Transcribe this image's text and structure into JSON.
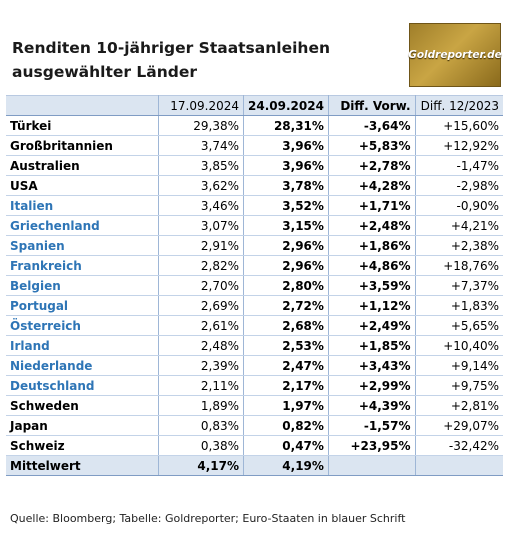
{
  "title_line1": "Renditen 10-jähriger Staatsanleihen",
  "title_line2": "ausgewählter Länder",
  "logo_text": "Goldreporter.de",
  "headers": [
    "",
    "17.09.2024",
    "24.09.2024",
    "Diff. Vorw.",
    "Diff. 12/2023"
  ],
  "rows": [
    {
      "country": "Türkei",
      "euro": false,
      "d1": "29,38%",
      "d2": "28,31%",
      "dw": "-3,64%",
      "dy": "+15,60%"
    },
    {
      "country": "Großbritannien",
      "euro": false,
      "d1": "3,74%",
      "d2": "3,96%",
      "dw": "+5,83%",
      "dy": "+12,92%"
    },
    {
      "country": "Australien",
      "euro": false,
      "d1": "3,85%",
      "d2": "3,96%",
      "dw": "+2,78%",
      "dy": "-1,47%"
    },
    {
      "country": "USA",
      "euro": false,
      "d1": "3,62%",
      "d2": "3,78%",
      "dw": "+4,28%",
      "dy": "-2,98%"
    },
    {
      "country": "Italien",
      "euro": true,
      "d1": "3,46%",
      "d2": "3,52%",
      "dw": "+1,71%",
      "dy": "-0,90%"
    },
    {
      "country": "Griechenland",
      "euro": true,
      "d1": "3,07%",
      "d2": "3,15%",
      "dw": "+2,48%",
      "dy": "+4,21%"
    },
    {
      "country": "Spanien",
      "euro": true,
      "d1": "2,91%",
      "d2": "2,96%",
      "dw": "+1,86%",
      "dy": "+2,38%"
    },
    {
      "country": "Frankreich",
      "euro": true,
      "d1": "2,82%",
      "d2": "2,96%",
      "dw": "+4,86%",
      "dy": "+18,76%"
    },
    {
      "country": "Belgien",
      "euro": true,
      "d1": "2,70%",
      "d2": "2,80%",
      "dw": "+3,59%",
      "dy": "+7,37%"
    },
    {
      "country": "Portugal",
      "euro": true,
      "d1": "2,69%",
      "d2": "2,72%",
      "dw": "+1,12%",
      "dy": "+1,83%"
    },
    {
      "country": "Österreich",
      "euro": true,
      "d1": "2,61%",
      "d2": "2,68%",
      "dw": "+2,49%",
      "dy": "+5,65%"
    },
    {
      "country": "Irland",
      "euro": true,
      "d1": "2,48%",
      "d2": "2,53%",
      "dw": "+1,85%",
      "dy": "+10,40%"
    },
    {
      "country": "Niederlande",
      "euro": true,
      "d1": "2,39%",
      "d2": "2,47%",
      "dw": "+3,43%",
      "dy": "+9,14%"
    },
    {
      "country": "Deutschland",
      "euro": true,
      "d1": "2,11%",
      "d2": "2,17%",
      "dw": "+2,99%",
      "dy": "+9,75%"
    },
    {
      "country": "Schweden",
      "euro": false,
      "d1": "1,89%",
      "d2": "1,97%",
      "dw": "+4,39%",
      "dy": "+2,81%"
    },
    {
      "country": "Japan",
      "euro": false,
      "d1": "0,83%",
      "d2": "0,82%",
      "dw": "-1,57%",
      "dy": "+29,07%"
    },
    {
      "country": "Schweiz",
      "euro": false,
      "d1": "0,38%",
      "d2": "0,47%",
      "dw": "+23,95%",
      "dy": "-32,42%"
    }
  ],
  "mean": {
    "label": "Mittelwert",
    "d1": "4,17%",
    "d2": "4,19%"
  },
  "source": "Quelle: Bloomberg; Tabelle: Goldreporter; Euro-Staaten in blauer Schrift",
  "colors": {
    "euro_text": "#2e75b6",
    "header_bg": "#dbe5f1",
    "logo_gold": "#c9a544"
  }
}
